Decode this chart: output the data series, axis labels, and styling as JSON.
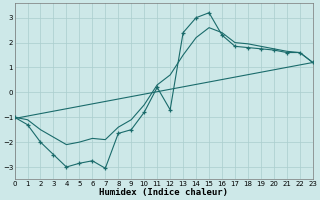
{
  "xlabel": "Humidex (Indice chaleur)",
  "background_color": "#cde8e8",
  "line_color": "#1a6b6b",
  "grid_color": "#aacece",
  "xlim": [
    0,
    23
  ],
  "ylim": [
    -3.5,
    3.6
  ],
  "xticks": [
    0,
    1,
    2,
    3,
    4,
    5,
    6,
    7,
    8,
    9,
    10,
    11,
    12,
    13,
    14,
    15,
    16,
    17,
    18,
    19,
    20,
    21,
    22,
    23
  ],
  "yticks": [
    -3,
    -2,
    -1,
    0,
    1,
    2,
    3
  ],
  "main_x": [
    0,
    1,
    2,
    3,
    4,
    5,
    6,
    7,
    8,
    9,
    10,
    11,
    12,
    13,
    14,
    15,
    16,
    17,
    18,
    19,
    20,
    21,
    22,
    23
  ],
  "main_y": [
    -1.0,
    -1.3,
    -2.0,
    -2.5,
    -3.0,
    -2.85,
    -2.75,
    -3.05,
    -1.65,
    -1.5,
    -0.8,
    0.2,
    -0.7,
    2.4,
    3.0,
    3.2,
    2.3,
    1.85,
    1.8,
    1.75,
    1.7,
    1.6,
    1.6,
    1.2
  ],
  "trend_x": [
    0,
    23
  ],
  "trend_y": [
    -1.05,
    1.2
  ],
  "smooth_x": [
    0,
    1,
    2,
    3,
    4,
    5,
    6,
    7,
    8,
    9,
    10,
    11,
    12,
    13,
    14,
    15,
    16,
    17,
    18,
    19,
    20,
    21,
    22,
    23
  ],
  "smooth_y": [
    -1.0,
    -1.1,
    -1.5,
    -1.8,
    -2.1,
    -2.0,
    -1.85,
    -1.9,
    -1.4,
    -1.1,
    -0.5,
    0.3,
    0.7,
    1.5,
    2.2,
    2.6,
    2.4,
    2.0,
    1.95,
    1.85,
    1.75,
    1.65,
    1.6,
    1.2
  ]
}
